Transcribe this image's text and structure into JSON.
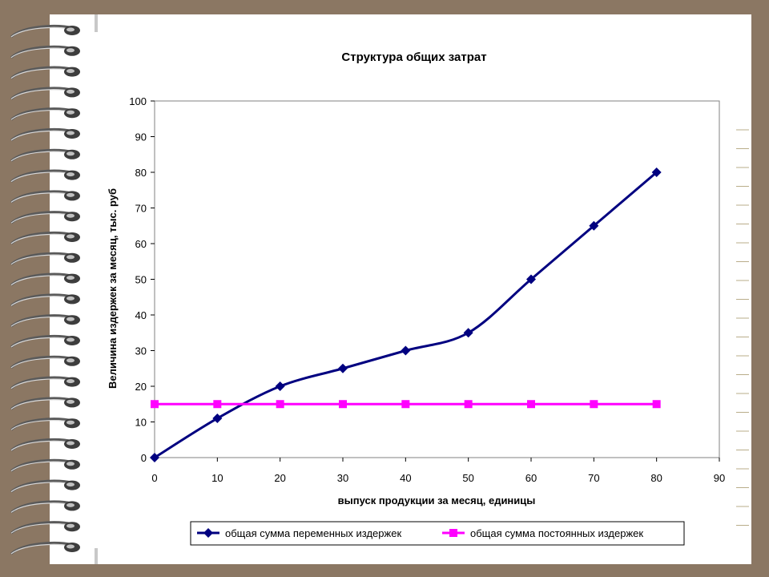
{
  "colors": {
    "background": "#8b7763",
    "paper": "#ffffff",
    "variable_series": "#000080",
    "fixed_series": "#ff00ff"
  },
  "chart_data": {
    "type": "line",
    "title": "Структура общих затрат",
    "xlabel": "выпуск продукции за месяц, единицы",
    "ylabel": "Величина издержек за месяц, тыс. руб",
    "xlim": [
      0,
      90
    ],
    "ylim": [
      0,
      100
    ],
    "xticks": [
      "0",
      "10",
      "20",
      "30",
      "40",
      "50",
      "60",
      "70",
      "80",
      "90"
    ],
    "yticks": [
      "0",
      "10",
      "20",
      "30",
      "40",
      "50",
      "60",
      "70",
      "80",
      "90",
      "100"
    ],
    "grid": false,
    "legend_position": "bottom",
    "series": [
      {
        "name": "общая сумма переменных издержек",
        "marker": "diamond",
        "color": "#000080",
        "x": [
          0,
          10,
          20,
          30,
          40,
          50,
          60,
          70,
          80
        ],
        "y": [
          0,
          11,
          20,
          25,
          30,
          35,
          50,
          65,
          80
        ]
      },
      {
        "name": "общая сумма постоянных издержек",
        "marker": "square",
        "color": "#ff00ff",
        "x": [
          0,
          10,
          20,
          30,
          40,
          50,
          60,
          70,
          80
        ],
        "y": [
          15,
          15,
          15,
          15,
          15,
          15,
          15,
          15,
          15
        ]
      }
    ]
  }
}
